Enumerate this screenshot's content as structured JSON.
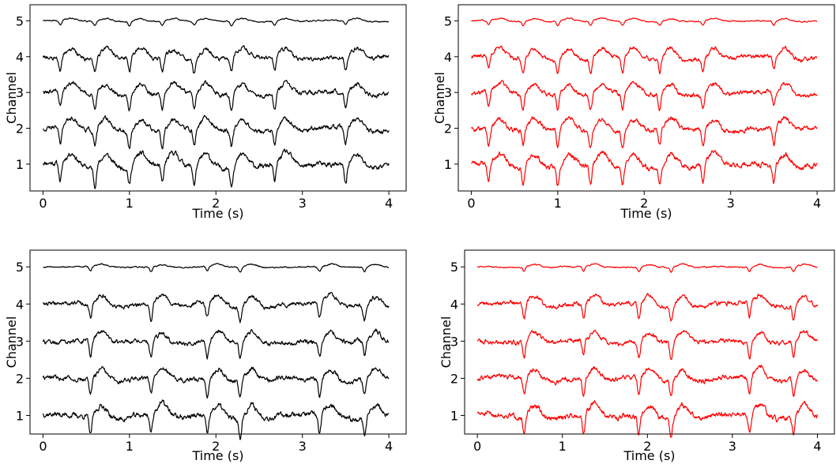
{
  "chart_data": [
    {
      "type": "line",
      "panel": "top-left",
      "xlabel": "Time (s)",
      "ylabel": "Channel",
      "xlim": [
        -0.15,
        4.2
      ],
      "ylim": [
        0.25,
        5.45
      ],
      "xticks": [
        "0",
        "1",
        "2",
        "3",
        "4"
      ],
      "yticks": [
        "1",
        "2",
        "3",
        "4",
        "5"
      ],
      "line_color": "#000000",
      "channels": [
        "1",
        "2",
        "3",
        "4",
        "5"
      ],
      "beat_times_s": [
        0.2,
        0.6,
        1.0,
        1.38,
        1.75,
        2.18,
        2.68,
        3.5
      ],
      "signal_seed": 11
    },
    {
      "type": "line",
      "panel": "top-right",
      "xlabel": "Time (s)",
      "ylabel": "Channel",
      "xlim": [
        -0.15,
        4.2
      ],
      "ylim": [
        0.25,
        5.45
      ],
      "xticks": [
        "0",
        "1",
        "2",
        "3",
        "4"
      ],
      "yticks": [
        "1",
        "2",
        "3",
        "4",
        "5"
      ],
      "line_color": "#ff0000",
      "channels": [
        "1",
        "2",
        "3",
        "4",
        "5"
      ],
      "beat_times_s": [
        0.2,
        0.6,
        1.0,
        1.38,
        1.75,
        2.18,
        2.68,
        3.5
      ],
      "signal_seed": 23
    },
    {
      "type": "line",
      "panel": "bottom-left",
      "xlabel": "Time (s)",
      "ylabel": "Channel",
      "xlim": [
        -0.15,
        4.2
      ],
      "ylim": [
        0.5,
        5.45
      ],
      "xticks": [
        "0",
        "1",
        "2",
        "3",
        "4"
      ],
      "yticks": [
        "1",
        "2",
        "3",
        "4",
        "5"
      ],
      "line_color": "#000000",
      "channels": [
        "1",
        "2",
        "3",
        "4",
        "5"
      ],
      "beat_times_s": [
        0.55,
        1.25,
        1.9,
        2.28,
        3.2,
        3.72
      ],
      "signal_seed": 37
    },
    {
      "type": "line",
      "panel": "bottom-right",
      "xlabel": "Time (s)",
      "ylabel": "Channel",
      "xlim": [
        -0.15,
        4.2
      ],
      "ylim": [
        0.5,
        5.45
      ],
      "xticks": [
        "0",
        "1",
        "2",
        "3",
        "4"
      ],
      "yticks": [
        "1",
        "2",
        "3",
        "4",
        "5"
      ],
      "line_color": "#ff0000",
      "channels": [
        "1",
        "2",
        "3",
        "4",
        "5"
      ],
      "beat_times_s": [
        0.55,
        1.25,
        1.9,
        2.28,
        3.2,
        3.72
      ],
      "signal_seed": 51
    }
  ]
}
